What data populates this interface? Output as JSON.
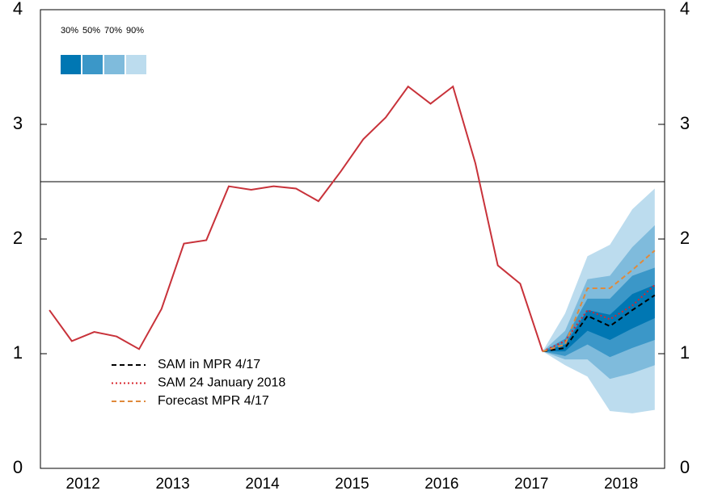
{
  "chart_data": {
    "type": "fan",
    "x": [
      2012,
      2012.25,
      2012.5,
      2012.75,
      2013,
      2013.25,
      2013.5,
      2013.75,
      2014,
      2014.25,
      2014.5,
      2014.75,
      2015,
      2015.25,
      2015.5,
      2015.75,
      2016,
      2016.25,
      2016.5,
      2016.75,
      2017,
      2017.25,
      2017.5,
      2017.75,
      2018,
      2018.25,
      2018.5,
      2018.75
    ],
    "xlim": [
      2011.9,
      2018.86
    ],
    "xticks": [
      {
        "value": 2012.375,
        "label": "2012"
      },
      {
        "value": 2013.375,
        "label": "2013"
      },
      {
        "value": 2014.375,
        "label": "2014"
      },
      {
        "value": 2015.375,
        "label": "2015"
      },
      {
        "value": 2016.375,
        "label": "2016"
      },
      {
        "value": 2017.375,
        "label": "2017"
      },
      {
        "value": 2018.375,
        "label": "2018"
      }
    ],
    "ylim": [
      0,
      4
    ],
    "yticks": [
      0,
      1,
      2,
      3,
      4
    ],
    "y2lim": [
      0,
      4
    ],
    "y2ticks": [
      0,
      1,
      2,
      3,
      4
    ],
    "hline": 2.5,
    "history": {
      "color": "#c8323a",
      "values": [
        1.38,
        1.11,
        1.19,
        1.15,
        1.04,
        1.39,
        1.96,
        1.99,
        2.46,
        2.43,
        2.46,
        2.44,
        2.33,
        2.59,
        2.87,
        3.06,
        3.33,
        3.18,
        3.33,
        2.66,
        1.77,
        1.61,
        1.02,
        null,
        null,
        null,
        null,
        null
      ]
    },
    "fan": [
      {
        "name": "90%",
        "color": "#bcdcee",
        "upper": [
          null,
          null,
          null,
          null,
          null,
          null,
          null,
          null,
          null,
          null,
          null,
          null,
          null,
          null,
          null,
          null,
          null,
          null,
          null,
          null,
          null,
          null,
          1.02,
          1.35,
          1.85,
          1.95,
          2.26,
          2.44
        ],
        "lower": [
          null,
          null,
          null,
          null,
          null,
          null,
          null,
          null,
          null,
          null,
          null,
          null,
          null,
          null,
          null,
          null,
          null,
          null,
          null,
          null,
          null,
          null,
          1.02,
          0.9,
          0.8,
          0.5,
          0.48,
          0.51
        ]
      },
      {
        "name": "70%",
        "color": "#7fbbdc",
        "upper": [
          null,
          null,
          null,
          null,
          null,
          null,
          null,
          null,
          null,
          null,
          null,
          null,
          null,
          null,
          null,
          null,
          null,
          null,
          null,
          null,
          null,
          null,
          1.02,
          1.2,
          1.65,
          1.68,
          1.93,
          2.12
        ],
        "lower": [
          null,
          null,
          null,
          null,
          null,
          null,
          null,
          null,
          null,
          null,
          null,
          null,
          null,
          null,
          null,
          null,
          null,
          null,
          null,
          null,
          null,
          null,
          1.02,
          0.95,
          0.95,
          0.78,
          0.83,
          0.9
        ]
      },
      {
        "name": "50%",
        "color": "#3b97c8",
        "upper": [
          null,
          null,
          null,
          null,
          null,
          null,
          null,
          null,
          null,
          null,
          null,
          null,
          null,
          null,
          null,
          null,
          null,
          null,
          null,
          null,
          null,
          null,
          1.02,
          1.13,
          1.48,
          1.48,
          1.68,
          1.75
        ],
        "lower": [
          null,
          null,
          null,
          null,
          null,
          null,
          null,
          null,
          null,
          null,
          null,
          null,
          null,
          null,
          null,
          null,
          null,
          null,
          null,
          null,
          null,
          null,
          1.02,
          0.98,
          1.08,
          0.97,
          1.05,
          1.12
        ]
      },
      {
        "name": "30%",
        "color": "#0077b3",
        "upper": [
          null,
          null,
          null,
          null,
          null,
          null,
          null,
          null,
          null,
          null,
          null,
          null,
          null,
          null,
          null,
          null,
          null,
          null,
          null,
          null,
          null,
          null,
          1.02,
          1.08,
          1.38,
          1.34,
          1.52,
          1.6
        ],
        "lower": [
          null,
          null,
          null,
          null,
          null,
          null,
          null,
          null,
          null,
          null,
          null,
          null,
          null,
          null,
          null,
          null,
          null,
          null,
          null,
          null,
          null,
          null,
          1.02,
          1.02,
          1.2,
          1.12,
          1.22,
          1.31
        ]
      }
    ],
    "series": [
      {
        "name": "SAM in MPR 4/17",
        "color": "#000000",
        "dash": "dashed",
        "values": [
          null,
          null,
          null,
          null,
          null,
          null,
          null,
          null,
          null,
          null,
          null,
          null,
          null,
          null,
          null,
          null,
          null,
          null,
          null,
          null,
          null,
          null,
          1.02,
          1.05,
          1.33,
          1.24,
          1.38,
          1.51
        ]
      },
      {
        "name": "SAM 24 January 2018",
        "color": "#d8262e",
        "dash": "dotted",
        "values": [
          null,
          null,
          null,
          null,
          null,
          null,
          null,
          null,
          null,
          null,
          null,
          null,
          null,
          null,
          null,
          null,
          null,
          null,
          null,
          null,
          null,
          null,
          1.02,
          1.11,
          1.38,
          1.3,
          1.42,
          1.6
        ]
      },
      {
        "name": "Forecast MPR 4/17",
        "color": "#e08a3c",
        "dash": "dashed",
        "values": [
          null,
          null,
          null,
          null,
          null,
          null,
          null,
          null,
          null,
          null,
          null,
          null,
          null,
          null,
          null,
          null,
          null,
          null,
          null,
          null,
          null,
          null,
          1.02,
          1.08,
          1.57,
          1.57,
          1.73,
          1.9
        ]
      }
    ]
  }
}
